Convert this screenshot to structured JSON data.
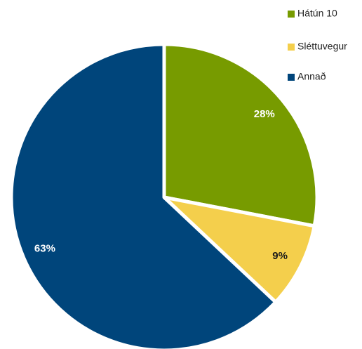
{
  "chart_data": {
    "type": "pie",
    "categories": [
      "Hátún 10",
      "Sléttuvegur",
      "Annað"
    ],
    "values": [
      28,
      9,
      63
    ],
    "value_labels": [
      "28%",
      "9%",
      "63%"
    ],
    "colors": [
      "#779b00",
      "#f4cf4c",
      "#00457b"
    ],
    "legend": "top-right"
  }
}
